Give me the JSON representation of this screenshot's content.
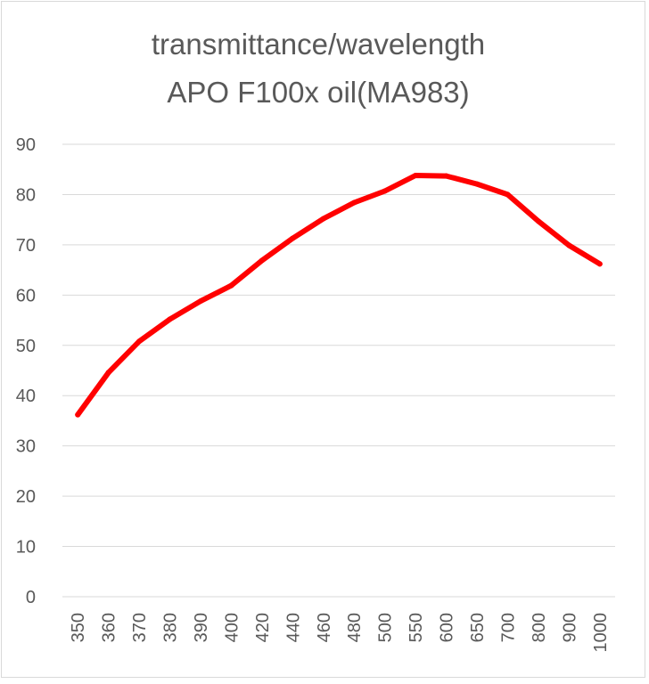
{
  "chart_data": {
    "type": "line",
    "title": [
      "transmittance/wavelength",
      "APO F100x oil(MA983)"
    ],
    "xlabel": "",
    "ylabel": "",
    "ylim": [
      0,
      90
    ],
    "y_ticks": [
      0,
      10,
      20,
      30,
      40,
      50,
      60,
      70,
      80,
      90
    ],
    "grid": "horizontal",
    "legend": "none",
    "categories": [
      "350",
      "360",
      "370",
      "380",
      "390",
      "400",
      "420",
      "440",
      "460",
      "480",
      "500",
      "550",
      "600",
      "650",
      "700",
      "800",
      "900",
      "1000"
    ],
    "series": [
      {
        "name": "transmittance",
        "color": "#ff0000",
        "values": [
          36.2,
          44.6,
          50.8,
          55.2,
          58.8,
          61.9,
          66.9,
          71.3,
          75.2,
          78.4,
          80.7,
          83.8,
          83.7,
          82.1,
          80.0,
          74.7,
          69.9,
          66.2
        ]
      }
    ],
    "colors": {
      "gridline": "#d9d9d9",
      "text": "#595959"
    }
  }
}
